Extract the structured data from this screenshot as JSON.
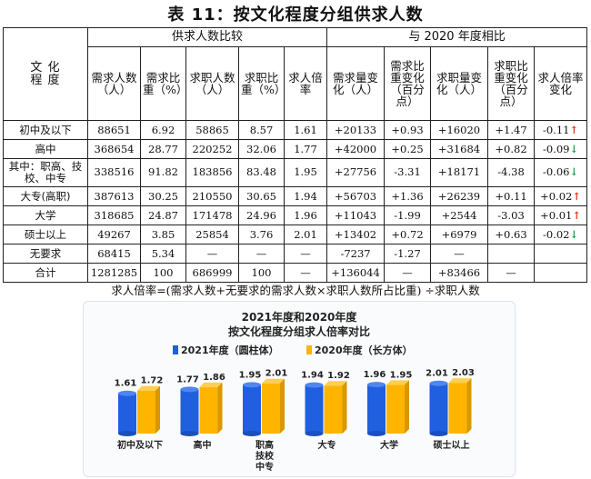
{
  "page_title": "表 11：按文化程度分组供求人数",
  "table": {
    "corner_label": "文 化\n程 度",
    "group_headers": [
      "供求人数比较",
      "与 2020 年度相比"
    ],
    "columns": [
      "需求人数（人）",
      "需求比重（%）",
      "求职人数（人）",
      "求职比重（%）",
      "求人倍率",
      "需求量变化（人）",
      "需求比重变化（百分点）",
      "求职量变化（人）",
      "求职比重变化（百分点）",
      "求人倍率变化"
    ],
    "rows": [
      {
        "label": "初中及以下",
        "cells": [
          "88651",
          "6.92",
          "58865",
          "8.57",
          "1.61",
          "+20133",
          "+0.93",
          "+16020",
          "+1.47",
          "-0.11"
        ],
        "arrow": "↑",
        "arrow_dir": "up"
      },
      {
        "label": "高中",
        "cells": [
          "368654",
          "28.77",
          "220252",
          "32.06",
          "1.77",
          "+42000",
          "+0.25",
          "+31684",
          "+0.82",
          "-0.09"
        ],
        "arrow": "↓",
        "arrow_dir": "down"
      },
      {
        "label": "其中：职高、技校、中专",
        "cells": [
          "338516",
          "91.82",
          "183856",
          "83.48",
          "1.95",
          "+27756",
          "-3.31",
          "+18171",
          "-4.38",
          "-0.06"
        ],
        "arrow": "↓",
        "arrow_dir": "down"
      },
      {
        "label": "大专(高职)",
        "cells": [
          "387613",
          "30.25",
          "210550",
          "30.65",
          "1.94",
          "+56703",
          "+1.36",
          "+26239",
          "+0.11",
          "+0.02"
        ],
        "arrow": "↑",
        "arrow_dir": "up"
      },
      {
        "label": "大学",
        "cells": [
          "318685",
          "24.87",
          "171478",
          "24.96",
          "1.96",
          "+11043",
          "-1.99",
          "+2544",
          "-3.03",
          "+0.01"
        ],
        "arrow": "↑",
        "arrow_dir": "up"
      },
      {
        "label": "硕士以上",
        "cells": [
          "49267",
          "3.85",
          "25854",
          "3.76",
          "2.01",
          "+13402",
          "+0.72",
          "+6979",
          "+0.63",
          "-0.02"
        ],
        "arrow": "↓",
        "arrow_dir": "down"
      },
      {
        "label": "无要求",
        "cells": [
          "68415",
          "5.34",
          "—",
          "—",
          "—",
          "-7237",
          "-1.27",
          "—",
          "",
          ""
        ],
        "arrow": "",
        "arrow_dir": ""
      },
      {
        "label": "合计",
        "cells": [
          "1281285",
          "100",
          "686999",
          "100",
          "—",
          "+136044",
          "—",
          "+83466",
          "—",
          ""
        ],
        "arrow": "",
        "arrow_dir": ""
      }
    ]
  },
  "note": "求人倍率=(需求人数+无要求的需求人数×求职人数所占比重) ÷求职人数",
  "colors": {
    "series_2021": "#1f5fe0",
    "series_2020": "#ffb400",
    "up": "#e8331c",
    "down": "#1aa04a"
  },
  "chart_data": {
    "type": "bar",
    "title": "2021年度和2020年度\n按文化程度分组求人倍率对比",
    "categories": [
      "初中及以下",
      "高中",
      "职高\n技校\n中专",
      "大专",
      "大学",
      "硕士以上"
    ],
    "series": [
      {
        "name": "2021年度（圆柱体）",
        "values": [
          1.61,
          1.77,
          1.95,
          1.94,
          1.96,
          2.01
        ]
      },
      {
        "name": "2020年度（长方体）",
        "values": [
          1.72,
          1.86,
          2.01,
          1.92,
          1.95,
          2.03
        ]
      }
    ],
    "legend_position": "top",
    "grid": false,
    "xlabel": "",
    "ylabel": "",
    "ylim": [
      0,
      2.2
    ]
  }
}
